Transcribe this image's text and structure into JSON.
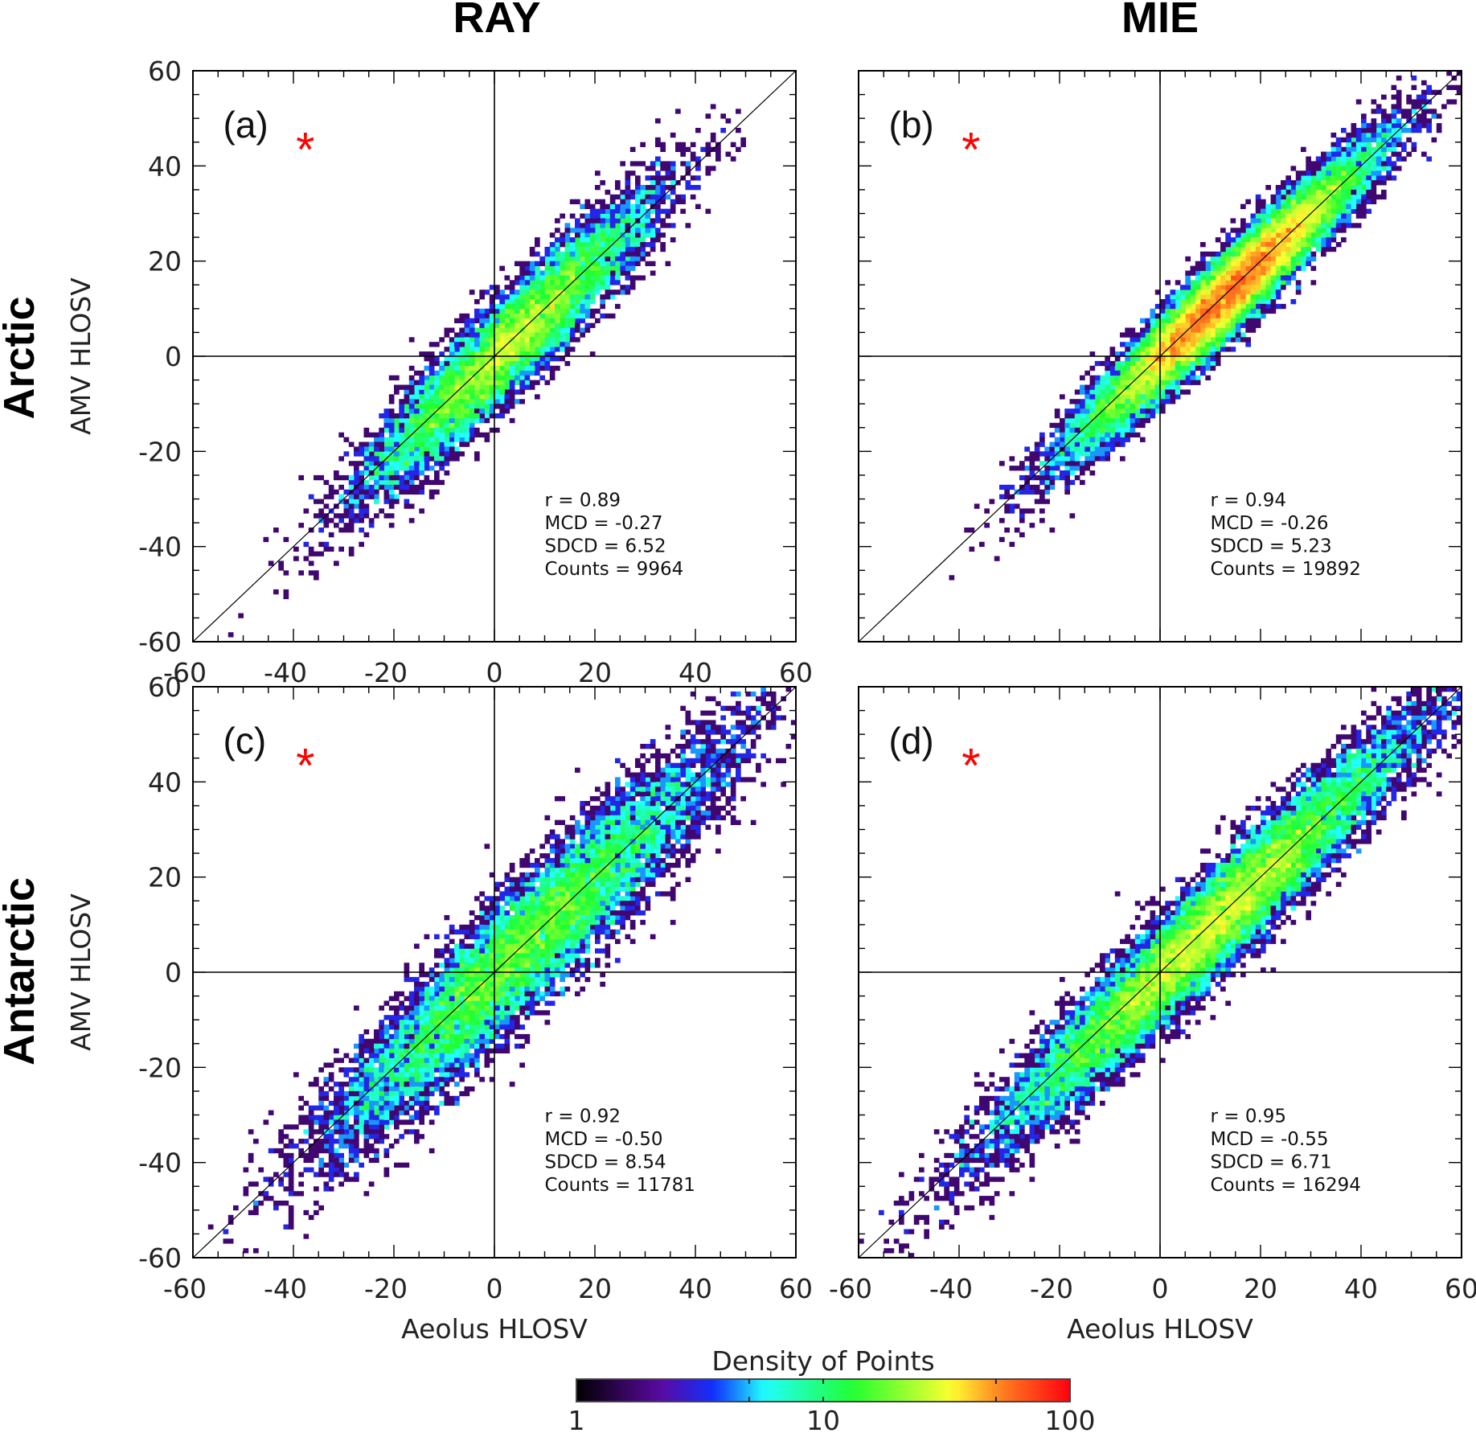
{
  "column_titles": [
    "RAY",
    "MIE"
  ],
  "row_titles": [
    "Arctic",
    "Antarctic"
  ],
  "colorbar": {
    "title": "Density of Points",
    "scale": "log",
    "range": [
      1,
      100
    ],
    "tick_labels": [
      "1",
      "10",
      "100"
    ],
    "colors": [
      "#000000",
      "#5a0aa0",
      "#1030ff",
      "#20ffff",
      "#20ff30",
      "#ffff30",
      "#ff8020",
      "#ff0010"
    ]
  },
  "chart_data": [
    {
      "type": "heatmap",
      "panel": "(a)",
      "marker": "*",
      "marker_color": "#ff0000",
      "column": "RAY",
      "row": "Arctic",
      "xlabel": "",
      "ylabel": "AMV HLOSV",
      "xlim": [
        -60,
        60
      ],
      "ylim": [
        -60,
        60
      ],
      "xticks": [
        "-60",
        "-40",
        "-20",
        "0",
        "20",
        "40",
        "60"
      ],
      "yticks": [
        "-60",
        "-40",
        "-20",
        "0",
        "20",
        "40",
        "60"
      ],
      "stats": [
        "r = 0.89",
        "MCD = -0.27",
        "SDCD = 6.52",
        "Counts = 9964"
      ]
    },
    {
      "type": "heatmap",
      "panel": "(b)",
      "marker": "*",
      "marker_color": "#ff0000",
      "column": "MIE",
      "row": "Arctic",
      "xlabel": "",
      "ylabel": "",
      "xlim": [
        -60,
        60
      ],
      "ylim": [
        -60,
        60
      ],
      "xticks": [],
      "yticks": [],
      "stats": [
        "r = 0.94",
        "MCD = -0.26",
        "SDCD = 5.23",
        "Counts = 19892"
      ]
    },
    {
      "type": "heatmap",
      "panel": "(c)",
      "marker": "*",
      "marker_color": "#ff0000",
      "column": "RAY",
      "row": "Antarctic",
      "xlabel": "Aeolus HLOSV",
      "ylabel": "AMV HLOSV",
      "xlim": [
        -60,
        60
      ],
      "ylim": [
        -60,
        60
      ],
      "xticks": [
        "-60",
        "-40",
        "-20",
        "0",
        "20",
        "40",
        "60"
      ],
      "yticks": [
        "-60",
        "-40",
        "-20",
        "0",
        "20",
        "40",
        "60"
      ],
      "stats": [
        "r = 0.92",
        "MCD = -0.50",
        "SDCD = 8.54",
        "Counts = 11781"
      ]
    },
    {
      "type": "heatmap",
      "panel": "(d)",
      "marker": "*",
      "marker_color": "#ff0000",
      "column": "MIE",
      "row": "Antarctic",
      "xlabel": "Aeolus HLOSV",
      "ylabel": "",
      "xlim": [
        -60,
        60
      ],
      "ylim": [
        -60,
        60
      ],
      "xticks": [
        "-60",
        "-40",
        "-20",
        "0",
        "20",
        "40",
        "60"
      ],
      "yticks": [],
      "stats": [
        "r = 0.95",
        "MCD = -0.55",
        "SDCD = 6.71",
        "Counts = 16294"
      ]
    }
  ]
}
